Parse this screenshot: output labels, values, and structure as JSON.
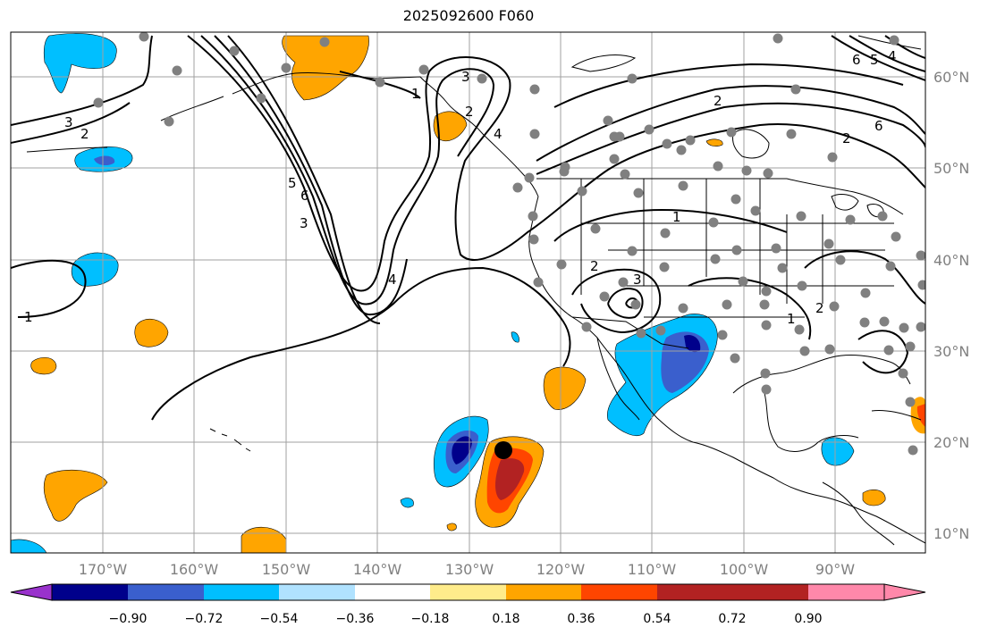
{
  "title": "2025092600 F060",
  "longitude_labels": [
    "170°W",
    "160°W",
    "150°W",
    "140°W",
    "130°W",
    "120°W",
    "110°W",
    "100°W",
    "90°W"
  ],
  "latitude_labels": [
    "60°N",
    "50°N",
    "40°N",
    "30°N",
    "20°N",
    "10°N"
  ],
  "colorbar": {
    "tick_labels": [
      "−0.90",
      "−0.72",
      "−0.54",
      "−0.36",
      "−0.18",
      "0.18",
      "0.36",
      "0.54",
      "0.72",
      "0.90"
    ],
    "colors": [
      "#9932cc",
      "#00008b",
      "#3a5fcd",
      "#00bfff",
      "#b0e2ff",
      "#ffffff",
      "#ffec8b",
      "#ffa500",
      "#ff4500",
      "#b22222",
      "#ff88aa"
    ]
  },
  "contour_labels": [
    "1",
    "2",
    "3",
    "4",
    "5",
    "6",
    "1",
    "2",
    "3",
    "4",
    "1",
    "2",
    "3",
    "2",
    "3",
    "1",
    "2",
    "6",
    "5",
    "4",
    "2",
    "6"
  ],
  "colors": {
    "land_line": "#000000",
    "grid": "#a0a0a0",
    "station": "#808080",
    "marker": "#000000"
  }
}
